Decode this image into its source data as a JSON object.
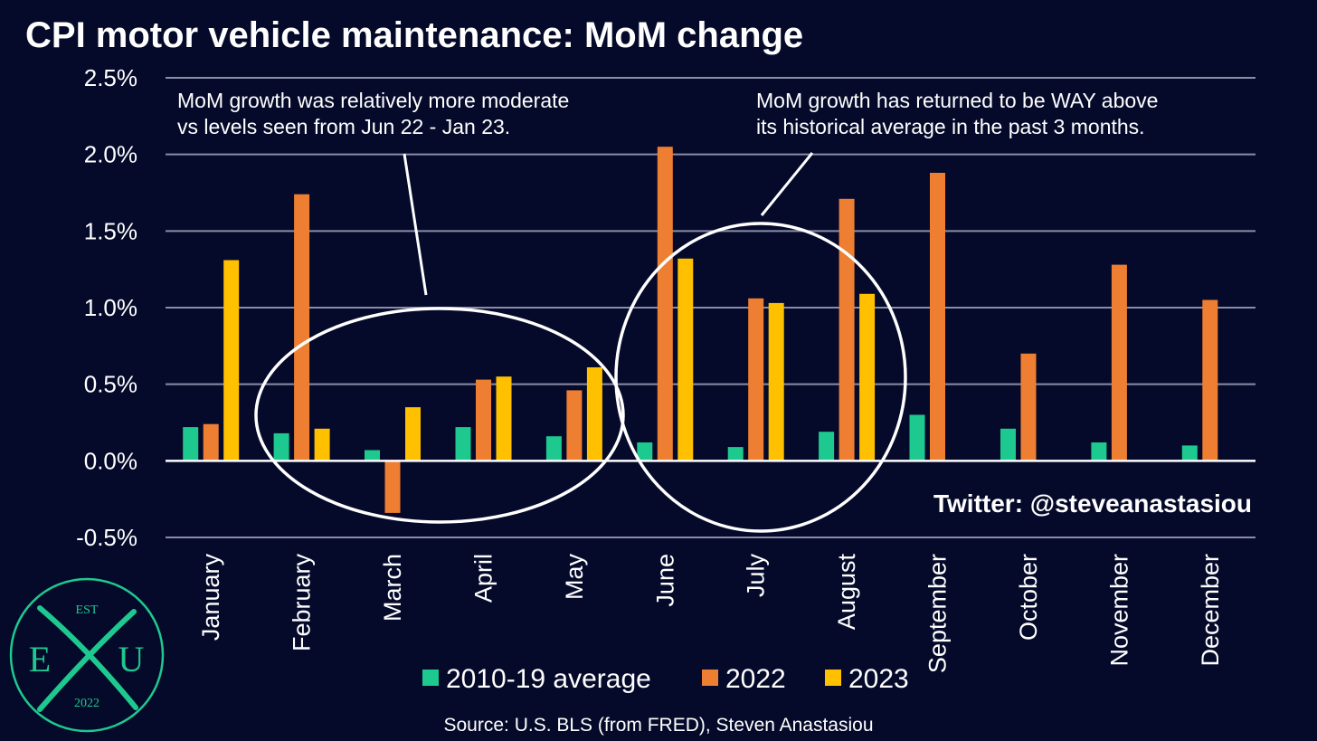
{
  "chart_data": {
    "type": "bar",
    "title": "CPI motor vehicle maintenance: MoM change",
    "categories": [
      "January",
      "February",
      "March",
      "April",
      "May",
      "June",
      "July",
      "August",
      "September",
      "October",
      "November",
      "December"
    ],
    "series": [
      {
        "name": "2010-19 average",
        "color": "#1ec98f",
        "values": [
          0.22,
          0.18,
          0.07,
          0.22,
          0.16,
          0.12,
          0.09,
          0.19,
          0.3,
          0.21,
          0.12,
          0.1
        ]
      },
      {
        "name": "2022",
        "color": "#ee7f32",
        "values": [
          0.24,
          1.74,
          -0.34,
          0.53,
          0.46,
          2.05,
          1.06,
          1.71,
          1.88,
          0.7,
          1.28,
          1.05
        ]
      },
      {
        "name": "2023",
        "color": "#ffc000",
        "values": [
          1.31,
          0.21,
          0.35,
          0.55,
          0.61,
          1.32,
          1.03,
          1.09,
          null,
          null,
          null,
          null
        ]
      }
    ],
    "yticks": [
      "2.5%",
      "2.0%",
      "1.5%",
      "1.0%",
      "0.5%",
      "0.0%",
      "-0.5%"
    ],
    "ylim": [
      -0.5,
      2.5
    ],
    "grid": true,
    "legend_position": "bottom"
  },
  "annotations": {
    "left_line1": "MoM growth was relatively more moderate",
    "left_line2": "vs levels seen from Jun 22 - Jan 23.",
    "right_line1": "MoM growth has returned to be WAY above",
    "right_line2": "its historical average in the past 3 months."
  },
  "handle": "Twitter: @steveanastasiou",
  "source": "Source: U.S. BLS (from FRED), Steven Anastasiou",
  "logo": {
    "top": "EST",
    "left": "E",
    "right": "U",
    "bottom": "2022"
  }
}
